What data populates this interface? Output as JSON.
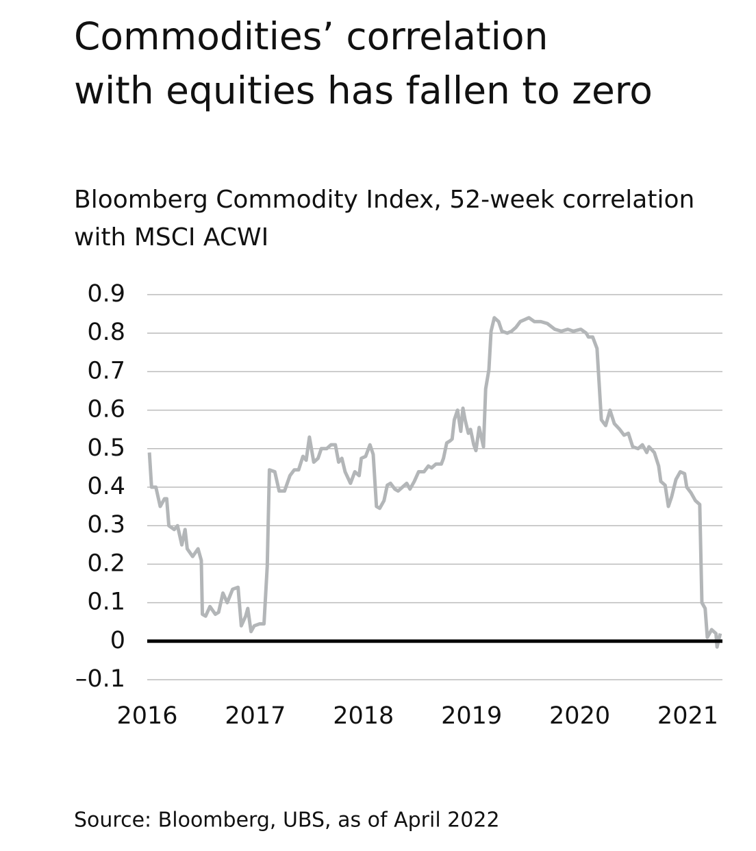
{
  "chart_data": {
    "type": "line",
    "title": [
      "Commodities’ correlation",
      "with equities has fallen to zero"
    ],
    "subtitle": [
      "Bloomberg Commodity Index, 52-week correlation",
      "with MSCI ACWI"
    ],
    "source": "Source: Bloomberg, UBS, as of April 2022",
    "x": [
      2016.02,
      2016.04,
      2016.08,
      2016.12,
      2016.16,
      2016.18,
      2016.2,
      2016.25,
      2016.28,
      2016.32,
      2016.35,
      2016.37,
      2016.42,
      2016.47,
      2016.5,
      2016.51,
      2016.54,
      2016.58,
      2016.63,
      2016.66,
      2016.7,
      2016.74,
      2016.79,
      2016.84,
      2016.87,
      2016.91,
      2016.93,
      2016.96,
      2016.99,
      2017.04,
      2017.08,
      2017.11,
      2017.13,
      2017.18,
      2017.22,
      2017.27,
      2017.32,
      2017.36,
      2017.4,
      2017.44,
      2017.47,
      2017.5,
      2017.54,
      2017.58,
      2017.61,
      2017.66,
      2017.7,
      2017.74,
      2017.77,
      2017.8,
      2017.83,
      2017.88,
      2017.92,
      2017.96,
      2017.98,
      2018.02,
      2018.06,
      2018.09,
      2018.12,
      2018.15,
      2018.19,
      2018.22,
      2018.25,
      2018.29,
      2018.32,
      2018.36,
      2018.4,
      2018.43,
      2018.47,
      2018.51,
      2018.56,
      2018.6,
      2018.63,
      2018.67,
      2018.72,
      2018.74,
      2018.77,
      2018.8,
      2018.82,
      2018.84,
      2018.87,
      2018.9,
      2018.92,
      2018.94,
      2018.97,
      2018.99,
      2019.02,
      2019.04,
      2019.07,
      2019.11,
      2019.13,
      2019.16,
      2019.18,
      2019.21,
      2019.25,
      2019.28,
      2019.33,
      2019.37,
      2019.41,
      2019.45,
      2019.49,
      2019.53,
      2019.58,
      2019.64,
      2019.7,
      2019.77,
      2019.83,
      2019.89,
      2019.94,
      2020.01,
      2020.06,
      2020.08,
      2020.12,
      2020.16,
      2020.2,
      2020.24,
      2020.28,
      2020.32,
      2020.37,
      2020.41,
      2020.45,
      2020.49,
      2020.54,
      2020.58,
      2020.62,
      2020.64,
      2020.69,
      2020.73,
      2020.75,
      2020.79,
      2020.82,
      2020.85,
      2020.89,
      2020.93,
      2020.97,
      2020.99,
      2021.03,
      2021.07,
      2021.11,
      2021.13,
      2021.16,
      2021.18,
      2021.22,
      2021.26,
      2021.27,
      2021.3
    ],
    "series": [
      {
        "color": "#b3b6b8",
        "values": [
          0.49,
          0.4,
          0.4,
          0.35,
          0.37,
          0.37,
          0.3,
          0.29,
          0.3,
          0.25,
          0.29,
          0.24,
          0.22,
          0.24,
          0.21,
          0.07,
          0.065,
          0.09,
          0.07,
          0.075,
          0.125,
          0.1,
          0.135,
          0.14,
          0.04,
          0.065,
          0.085,
          0.025,
          0.04,
          0.045,
          0.045,
          0.195,
          0.445,
          0.44,
          0.39,
          0.39,
          0.43,
          0.445,
          0.445,
          0.48,
          0.47,
          0.53,
          0.465,
          0.475,
          0.5,
          0.5,
          0.51,
          0.51,
          0.465,
          0.475,
          0.44,
          0.41,
          0.44,
          0.43,
          0.475,
          0.48,
          0.51,
          0.485,
          0.35,
          0.345,
          0.365,
          0.405,
          0.41,
          0.395,
          0.39,
          0.4,
          0.41,
          0.395,
          0.415,
          0.44,
          0.44,
          0.455,
          0.45,
          0.46,
          0.46,
          0.475,
          0.515,
          0.52,
          0.525,
          0.575,
          0.6,
          0.545,
          0.605,
          0.575,
          0.54,
          0.55,
          0.51,
          0.495,
          0.555,
          0.505,
          0.655,
          0.705,
          0.805,
          0.84,
          0.83,
          0.805,
          0.8,
          0.805,
          0.815,
          0.83,
          0.835,
          0.84,
          0.83,
          0.83,
          0.825,
          0.81,
          0.805,
          0.81,
          0.805,
          0.81,
          0.8,
          0.79,
          0.79,
          0.76,
          0.575,
          0.56,
          0.6,
          0.565,
          0.55,
          0.535,
          0.54,
          0.505,
          0.5,
          0.51,
          0.49,
          0.505,
          0.49,
          0.455,
          0.415,
          0.405,
          0.35,
          0.375,
          0.42,
          0.44,
          0.435,
          0.4,
          0.385,
          0.365,
          0.355,
          0.1,
          0.085,
          0.01,
          0.03,
          0.02,
          -0.015,
          0.02
        ]
      }
    ],
    "xlim": [
      2016,
      2021.32
    ],
    "xticks": [
      2016,
      2017,
      2018,
      2019,
      2020,
      2021
    ],
    "ylim": [
      -0.1,
      0.9
    ],
    "yticks": [
      {
        "value": -0.1,
        "label": "–0.1"
      },
      0,
      0.1,
      0.2,
      0.3,
      0.4,
      0.5,
      0.6,
      0.7,
      0.8,
      0.9
    ],
    "grid": true
  }
}
